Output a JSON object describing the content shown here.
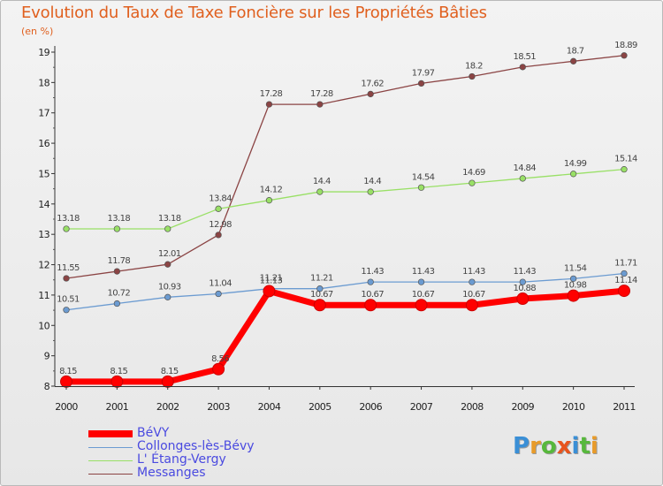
{
  "chart_data": {
    "type": "line",
    "title": "Evolution du Taux de Taxe Foncière sur les Propriétés Bâties",
    "ylabel": "(en %)",
    "xlabel": "",
    "x": [
      "2000",
      "2001",
      "2002",
      "2003",
      "2004",
      "2005",
      "2006",
      "2007",
      "2008",
      "2009",
      "2010",
      "2011"
    ],
    "ylim": [
      8,
      19
    ],
    "yticks": [
      "8",
      "9",
      "10",
      "11",
      "12",
      "13",
      "14",
      "15",
      "16",
      "17",
      "18",
      "19"
    ],
    "grid": false,
    "legend_position": "bottom-left",
    "series": [
      {
        "name": "BéVY",
        "color": "#ff0000",
        "values": [
          8.15,
          8.15,
          8.15,
          8.56,
          11.13,
          10.67,
          10.67,
          10.67,
          10.67,
          10.88,
          10.98,
          11.14
        ],
        "labels": [
          "8.15",
          "8.15",
          "8.15",
          "8.56",
          "11.13",
          "10.67",
          "10.67",
          "10.67",
          "10.67",
          "10.88",
          "10.98",
          "11.14"
        ]
      },
      {
        "name": "Collonges-lès-Bévy",
        "color": "#6b9bd1",
        "values": [
          10.51,
          10.72,
          10.93,
          11.04,
          11.21,
          11.21,
          11.43,
          11.43,
          11.43,
          11.43,
          11.54,
          11.71
        ],
        "labels": [
          "10.51",
          "10.72",
          "10.93",
          "11.04",
          "11.21",
          "11.21",
          "11.43",
          "11.43",
          "11.43",
          "11.43",
          "11.54",
          "11.71"
        ]
      },
      {
        "name": "L' Étang-Vergy",
        "color": "#99e066",
        "values": [
          13.18,
          13.18,
          13.18,
          13.84,
          14.12,
          14.4,
          14.4,
          14.54,
          14.69,
          14.84,
          14.99,
          15.14
        ],
        "labels": [
          "13.18",
          "13.18",
          "13.18",
          "13.84",
          "14.12",
          "14.4",
          "14.4",
          "14.54",
          "14.69",
          "14.84",
          "14.99",
          "15.14"
        ]
      },
      {
        "name": "Messanges",
        "color": "#8b4444",
        "values": [
          11.55,
          11.78,
          12.01,
          12.98,
          17.28,
          17.28,
          17.62,
          17.97,
          18.2,
          18.51,
          18.7,
          18.89
        ],
        "labels": [
          "11.55",
          "11.78",
          "12.01",
          "12.98",
          "17.28",
          "17.28",
          "17.62",
          "17.97",
          "18.2",
          "18.51",
          "18.7",
          "18.89"
        ]
      }
    ]
  },
  "logo": {
    "letters": [
      "P",
      "r",
      "o",
      "x",
      "i",
      "t",
      "i"
    ],
    "colors": [
      "#3a8fd6",
      "#e89b2a",
      "#57b83c",
      "#e8541d",
      "#3a8fd6",
      "#57b83c",
      "#e89b2a"
    ]
  }
}
